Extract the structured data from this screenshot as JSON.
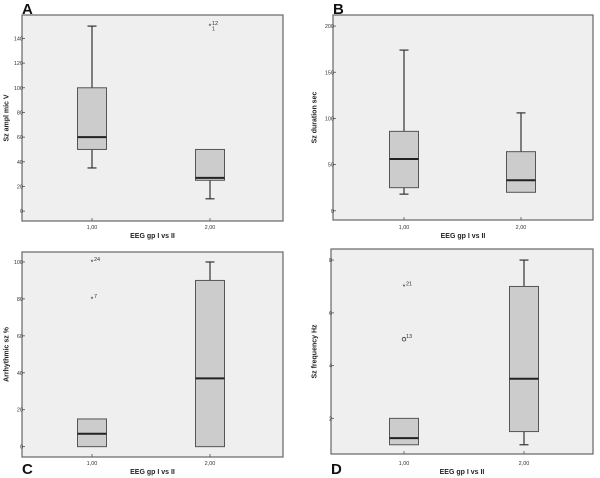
{
  "chart_data": [
    {
      "type": "boxplot",
      "panel_label": "A",
      "xlabel": "EEG gp I vs II",
      "ylabel": "Sz ampl mic V",
      "categories": [
        "1,00",
        "2,00"
      ],
      "ylim": [
        -8,
        159
      ],
      "yticks": [
        0,
        20,
        40,
        60,
        80,
        100,
        120,
        140
      ],
      "series": [
        {
          "name": "1,00",
          "min": 35,
          "q1": 50,
          "median": 60,
          "q3": 100,
          "max": 150,
          "outliers": []
        },
        {
          "name": "2,00",
          "min": 10,
          "q1": 25,
          "median": 27,
          "q3": 50,
          "max": 50,
          "outliers": [
            {
              "value": 150,
              "marker": "star",
              "labels": [
                "12",
                "1"
              ]
            }
          ]
        }
      ]
    },
    {
      "type": "boxplot",
      "panel_label": "B",
      "xlabel": "EEG gp I vs II",
      "ylabel": "Sz duration sec",
      "categories": [
        "1,00",
        "2,00"
      ],
      "ylim": [
        -10,
        212
      ],
      "yticks": [
        0,
        50,
        100,
        150,
        200
      ],
      "series": [
        {
          "name": "1,00",
          "min": 18,
          "q1": 25,
          "median": 56,
          "q3": 86,
          "max": 174,
          "outliers": []
        },
        {
          "name": "2,00",
          "min": 20,
          "q1": 20,
          "median": 33,
          "q3": 64,
          "max": 106,
          "outliers": []
        }
      ]
    },
    {
      "type": "boxplot",
      "panel_label": "C",
      "xlabel": "EEG gp I vs II",
      "ylabel": "Arrhythmic sz %",
      "categories": [
        "1,00",
        "2,00"
      ],
      "ylim": [
        -5.6,
        105.4
      ],
      "yticks": [
        0,
        20,
        40,
        60,
        80,
        100
      ],
      "series": [
        {
          "name": "1,00",
          "min": 0,
          "q1": 0,
          "median": 7,
          "q3": 15,
          "max": 15,
          "outliers": [
            {
              "value": 100,
              "marker": "star",
              "labels": [
                "24"
              ]
            },
            {
              "value": 80,
              "marker": "star",
              "labels": [
                "7"
              ]
            }
          ]
        },
        {
          "name": "2,00",
          "min": 0,
          "q1": 0,
          "median": 37,
          "q3": 90,
          "max": 100,
          "outliers": []
        }
      ]
    },
    {
      "type": "boxplot",
      "panel_label": "D",
      "xlabel": "EEG gp I vs II",
      "ylabel": "Sz frequency Hz",
      "categories": [
        "1,00",
        "2,00"
      ],
      "ylim": [
        0.65,
        8.42
      ],
      "yticks": [
        2,
        4,
        6,
        8
      ],
      "series": [
        {
          "name": "1,00",
          "min": 1,
          "q1": 1,
          "median": 1.25,
          "q3": 2,
          "max": 2,
          "outliers": [
            {
              "value": 7,
              "marker": "star",
              "labels": [
                "21"
              ]
            },
            {
              "value": 5,
              "marker": "circle",
              "labels": [
                "13"
              ]
            }
          ]
        },
        {
          "name": "2,00",
          "min": 1,
          "q1": 1.5,
          "median": 3.5,
          "q3": 7,
          "max": 8,
          "outliers": []
        }
      ]
    }
  ]
}
